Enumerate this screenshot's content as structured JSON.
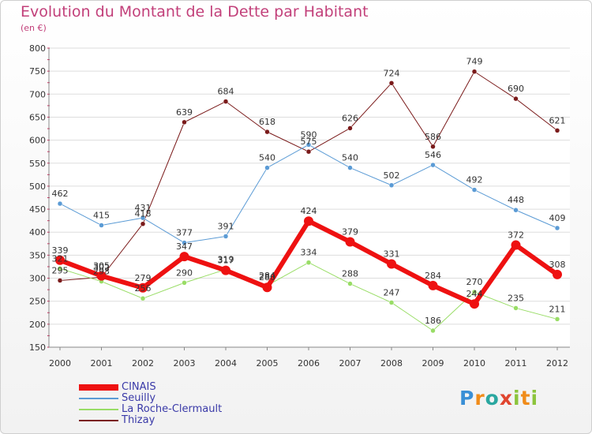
{
  "chart_data": {
    "type": "line",
    "title": "Evolution du Montant de la Dette par Habitant",
    "subtitle": "(en €)",
    "categories": [
      "2000",
      "2001",
      "2002",
      "2003",
      "2004",
      "2005",
      "2006",
      "2007",
      "2008",
      "2009",
      "2010",
      "2011",
      "2012"
    ],
    "ylim": [
      150,
      800
    ],
    "yticks": [
      150,
      200,
      250,
      300,
      350,
      400,
      450,
      500,
      550,
      600,
      650,
      700,
      750,
      800
    ],
    "grid": true,
    "legend_position": "bottom-left",
    "series": [
      {
        "name": "CINAIS",
        "color": "#ee1111",
        "width": 6,
        "values": [
          339,
          305,
          279,
          347,
          317,
          280,
          424,
          379,
          331,
          284,
          244,
          372,
          308
        ]
      },
      {
        "name": "Seuilly",
        "color": "#5b9bd5",
        "width": 1,
        "values": [
          462,
          415,
          431,
          377,
          391,
          540,
          590,
          540,
          502,
          546,
          492,
          448,
          409
        ]
      },
      {
        "name": "La Roche-Clermault",
        "color": "#99dd66",
        "width": 1,
        "values": [
          321,
          293,
          256,
          290,
          319,
          284,
          334,
          288,
          247,
          186,
          270,
          235,
          211
        ]
      },
      {
        "name": "Thizay",
        "color": "#7a1a1a",
        "width": 1,
        "values": [
          295,
          302,
          418,
          639,
          684,
          618,
          575,
          626,
          724,
          586,
          749,
          690,
          621
        ]
      }
    ]
  },
  "logo": {
    "letters": [
      "P",
      "r",
      "o",
      "x",
      "i",
      "t",
      "i"
    ]
  }
}
